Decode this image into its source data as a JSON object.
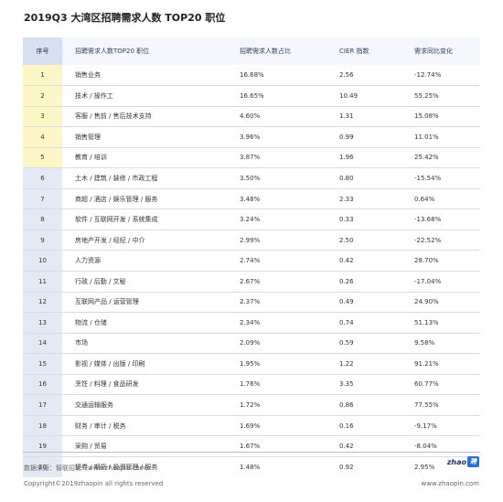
{
  "title": "2019Q3 大湾区招聘需求人数 TOP20 职位",
  "table": {
    "headers": {
      "rank": "序号",
      "position": "招聘需求人数TOP20 职位",
      "share": "招聘需求人数占比",
      "cier": "CIER 指数",
      "yoy": "需求同比变化"
    },
    "rows": [
      {
        "rank": "1",
        "position": "销售业务",
        "share": "16.68%",
        "cier": "2.56",
        "yoy": "-12.74%"
      },
      {
        "rank": "2",
        "position": "技术 / 操作工",
        "share": "16.65%",
        "cier": "10.49",
        "yoy": "55.25%"
      },
      {
        "rank": "3",
        "position": "客服 / 售前 / 售后技术支持",
        "share": "4.60%",
        "cier": "1.31",
        "yoy": "15.08%"
      },
      {
        "rank": "4",
        "position": "销售管理",
        "share": "3.96%",
        "cier": "0.99",
        "yoy": "11.01%"
      },
      {
        "rank": "5",
        "position": "教育 / 培训",
        "share": "3.87%",
        "cier": "1.96",
        "yoy": "25.42%"
      },
      {
        "rank": "6",
        "position": "土木 / 建筑 / 装修 / 市政工程",
        "share": "3.50%",
        "cier": "0.80",
        "yoy": "-15.54%"
      },
      {
        "rank": "7",
        "position": "商超 / 酒店 / 娱乐管理 / 服务",
        "share": "3.48%",
        "cier": "2.33",
        "yoy": "0.64%"
      },
      {
        "rank": "8",
        "position": "软件 / 互联网开发 / 系统集成",
        "share": "3.24%",
        "cier": "0.33",
        "yoy": "-13.68%"
      },
      {
        "rank": "9",
        "position": "房地产开发 / 经纪 / 中介",
        "share": "2.99%",
        "cier": "2.50",
        "yoy": "-22.52%"
      },
      {
        "rank": "10",
        "position": "人力资源",
        "share": "2.74%",
        "cier": "0.42",
        "yoy": "28.70%"
      },
      {
        "rank": "11",
        "position": "行政 / 后勤 / 文秘",
        "share": "2.67%",
        "cier": "0.26",
        "yoy": "-17.04%"
      },
      {
        "rank": "12",
        "position": "互联网产品 / 运营管理",
        "share": "2.37%",
        "cier": "0.49",
        "yoy": "24.90%"
      },
      {
        "rank": "13",
        "position": "物流 / 仓储",
        "share": "2.34%",
        "cier": "0.74",
        "yoy": "51.13%"
      },
      {
        "rank": "14",
        "position": "市场",
        "share": "2.09%",
        "cier": "0.59",
        "yoy": "9.58%"
      },
      {
        "rank": "15",
        "position": "影视 / 媒体 / 出版 / 印刷",
        "share": "1.95%",
        "cier": "1.22",
        "yoy": "91.21%"
      },
      {
        "rank": "16",
        "position": "烹饪 / 料理 / 食品研发",
        "share": "1.76%",
        "cier": "3.35",
        "yoy": "60.77%"
      },
      {
        "rank": "17",
        "position": "交通运输服务",
        "share": "1.72%",
        "cier": "0.86",
        "yoy": "77.55%"
      },
      {
        "rank": "18",
        "position": "财务 / 审计 / 税务",
        "share": "1.69%",
        "cier": "0.16",
        "yoy": "-9.17%"
      },
      {
        "rank": "19",
        "position": "采购 / 贸易",
        "share": "1.67%",
        "cier": "0.42",
        "yoy": "-8.04%"
      },
      {
        "rank": "20",
        "position": "证券 / 期货 / 投资管理 / 服务",
        "share": "1.48%",
        "cier": "0.92",
        "yoy": "2.95%"
      }
    ]
  },
  "footer": {
    "source": "数据来源：智联招聘（www.zhaopin.com）",
    "copyright": "Copyright©2019zhaopin all rights reserved",
    "brand_text_1": "zhao",
    "brand_text_2": "聘",
    "website": "www.zhaopin.com"
  },
  "colors": {
    "top5_rank_bg": "#fff6c8",
    "other_rank_bg": "#e3eaf6",
    "header_bg": "#f4f7fc"
  }
}
